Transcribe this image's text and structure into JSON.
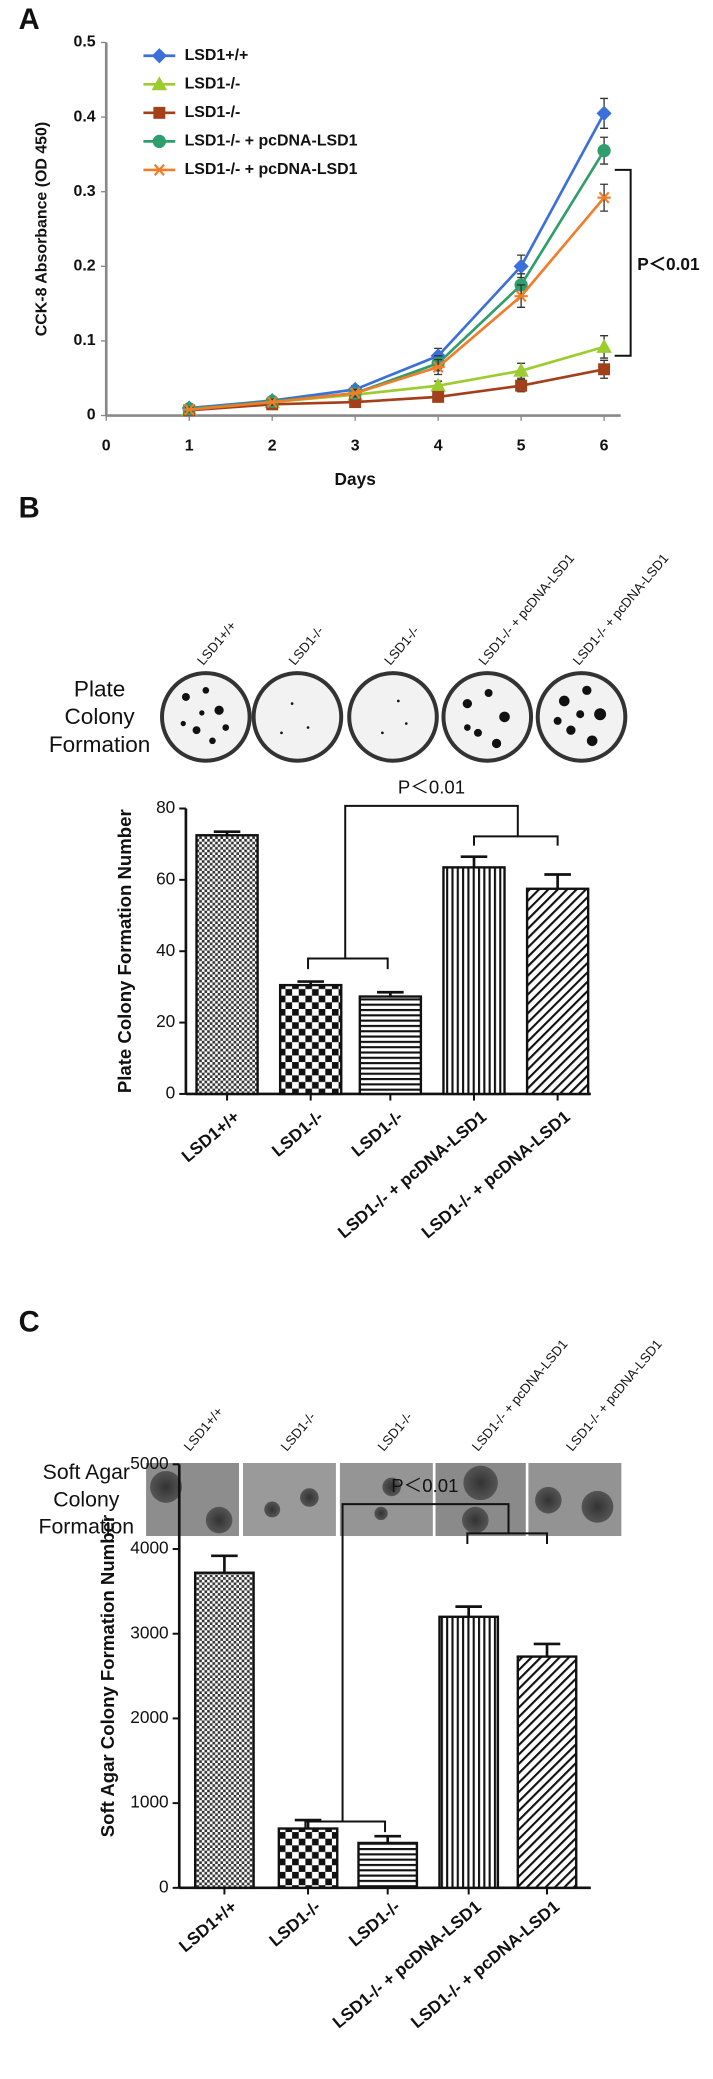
{
  "chart_data": [
    {
      "type": "line",
      "panel": "A",
      "xlabel": "Days",
      "ylabel": "CCK-8 Absorbance (OD 450)",
      "x": [
        1,
        2,
        3,
        4,
        5,
        6
      ],
      "xlim": [
        0,
        6.2
      ],
      "xticks": [
        0,
        1,
        2,
        3,
        4,
        5,
        6
      ],
      "ylim": [
        0,
        0.5
      ],
      "yticks": [
        0,
        0.1,
        0.2,
        0.3,
        0.4,
        0.5
      ],
      "series": [
        {
          "name": "LSD1+/+",
          "color": "#3b6fd9",
          "marker": "diamond",
          "values": [
            0.01,
            0.02,
            0.035,
            0.08,
            0.2,
            0.405
          ],
          "errors": [
            0.003,
            0.004,
            0.005,
            0.01,
            0.015,
            0.02
          ]
        },
        {
          "name": "LSD1-/-",
          "color": "#9ccc2e",
          "marker": "triangle",
          "values": [
            0.008,
            0.018,
            0.028,
            0.04,
            0.06,
            0.092
          ],
          "errors": [
            0.002,
            0.003,
            0.004,
            0.006,
            0.01,
            0.015
          ]
        },
        {
          "name": "LSD1-/-",
          "color": "#a3401b",
          "marker": "square",
          "values": [
            0.007,
            0.015,
            0.018,
            0.025,
            0.04,
            0.062
          ],
          "errors": [
            0.002,
            0.003,
            0.004,
            0.005,
            0.008,
            0.012
          ]
        },
        {
          "name": "LSD1-/- + pcDNA-LSD1",
          "color": "#2e9e6c",
          "marker": "circle",
          "values": [
            0.009,
            0.019,
            0.03,
            0.07,
            0.175,
            0.355
          ],
          "errors": [
            0.003,
            0.004,
            0.005,
            0.01,
            0.015,
            0.018
          ]
        },
        {
          "name": "LSD1-/- + pcDNA-LSD1",
          "color": "#f07d2a",
          "marker": "star",
          "values": [
            0.008,
            0.018,
            0.03,
            0.065,
            0.16,
            0.292
          ],
          "errors": [
            0.003,
            0.004,
            0.005,
            0.01,
            0.015,
            0.018
          ]
        }
      ],
      "annotation": "P＜0.01"
    },
    {
      "type": "bar",
      "panel": "B",
      "image_title": [
        "Plate",
        "Colony",
        "Formation"
      ],
      "image_labels": [
        "LSD1+/+",
        "LSD1-/-",
        "LSD1-/-",
        "LSD1-/- + pcDNA-LSD1",
        "LSD1-/- + pcDNA-LSD1"
      ],
      "ylabel": "Plate Colony Formation Number",
      "categories": [
        "LSD1+/+",
        "LSD1-/-",
        "LSD1-/-",
        "LSD1-/- + pcDNA-LSD1",
        "LSD1-/- + pcDNA-LSD1"
      ],
      "values": [
        72.5,
        30.5,
        27.3,
        63.5,
        57.5
      ],
      "errors": [
        1,
        1,
        1.2,
        3,
        4
      ],
      "ylim": [
        0,
        80
      ],
      "yticks": [
        0,
        20,
        40,
        60,
        80
      ],
      "annotation": "P＜0.01"
    },
    {
      "type": "bar",
      "panel": "C",
      "image_title": [
        "Soft Agar",
        "Colony",
        "Formation"
      ],
      "image_labels": [
        "LSD1+/+",
        "LSD1-/-",
        "LSD1-/-",
        "LSD1-/- + pcDNA-LSD1",
        "LSD1-/- + pcDNA-LSD1"
      ],
      "ylabel": "Soft Agar Colony Formation Number",
      "categories": [
        "LSD1+/+",
        "LSD1-/-",
        "LSD1-/-",
        "LSD1-/- + pcDNA-LSD1",
        "LSD1-/- + pcDNA-LSD1"
      ],
      "values": [
        3720,
        700,
        530,
        3200,
        2730
      ],
      "errors": [
        200,
        100,
        80,
        120,
        150
      ],
      "ylim": [
        0,
        5000
      ],
      "yticks": [
        0,
        1000,
        2000,
        3000,
        4000,
        5000
      ],
      "annotation": "P＜0.01"
    }
  ]
}
